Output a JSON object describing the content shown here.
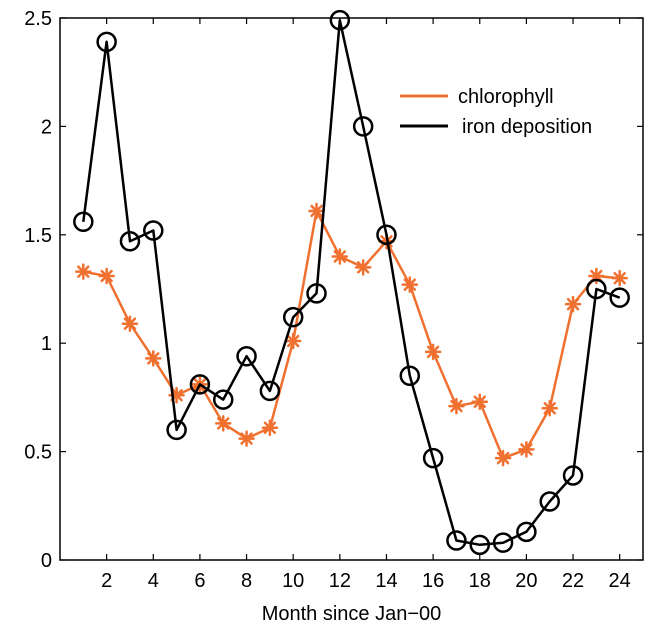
{
  "chart_data": {
    "type": "line",
    "title": "",
    "xlabel": "Month since Jan−00",
    "ylabel": "",
    "xlim": [
      0,
      25
    ],
    "ylim": [
      0,
      2.5
    ],
    "xticks": [
      2,
      4,
      6,
      8,
      10,
      12,
      14,
      16,
      18,
      20,
      22,
      24
    ],
    "yticks": [
      0,
      0.5,
      1,
      1.5,
      2,
      2.5
    ],
    "ytick_labels": [
      "0",
      "0.5",
      "1",
      "1.5",
      "2",
      "2.5"
    ],
    "grid": false,
    "legend_position": "top-right",
    "x": [
      1,
      2,
      3,
      4,
      5,
      6,
      7,
      8,
      9,
      10,
      11,
      12,
      13,
      14,
      15,
      16,
      17,
      18,
      19,
      20,
      21,
      22,
      23,
      24
    ],
    "series": [
      {
        "name": "chlorophyll",
        "color": "#f07030",
        "marker": "asterisk",
        "values": [
          1.33,
          1.31,
          1.09,
          0.93,
          0.76,
          0.81,
          0.63,
          0.56,
          0.61,
          1.01,
          1.61,
          1.4,
          1.35,
          1.47,
          1.27,
          0.96,
          0.71,
          0.73,
          0.47,
          0.51,
          0.7,
          1.18,
          1.31,
          1.3
        ]
      },
      {
        "name": "iron deposition",
        "color": "#000000",
        "marker": "circle",
        "values": [
          1.56,
          2.39,
          1.47,
          1.52,
          0.6,
          0.81,
          0.74,
          0.94,
          0.78,
          1.12,
          1.23,
          2.49,
          2.0,
          1.5,
          0.85,
          0.47,
          0.09,
          0.07,
          0.08,
          0.13,
          0.27,
          0.39,
          1.25,
          1.21
        ]
      }
    ]
  }
}
